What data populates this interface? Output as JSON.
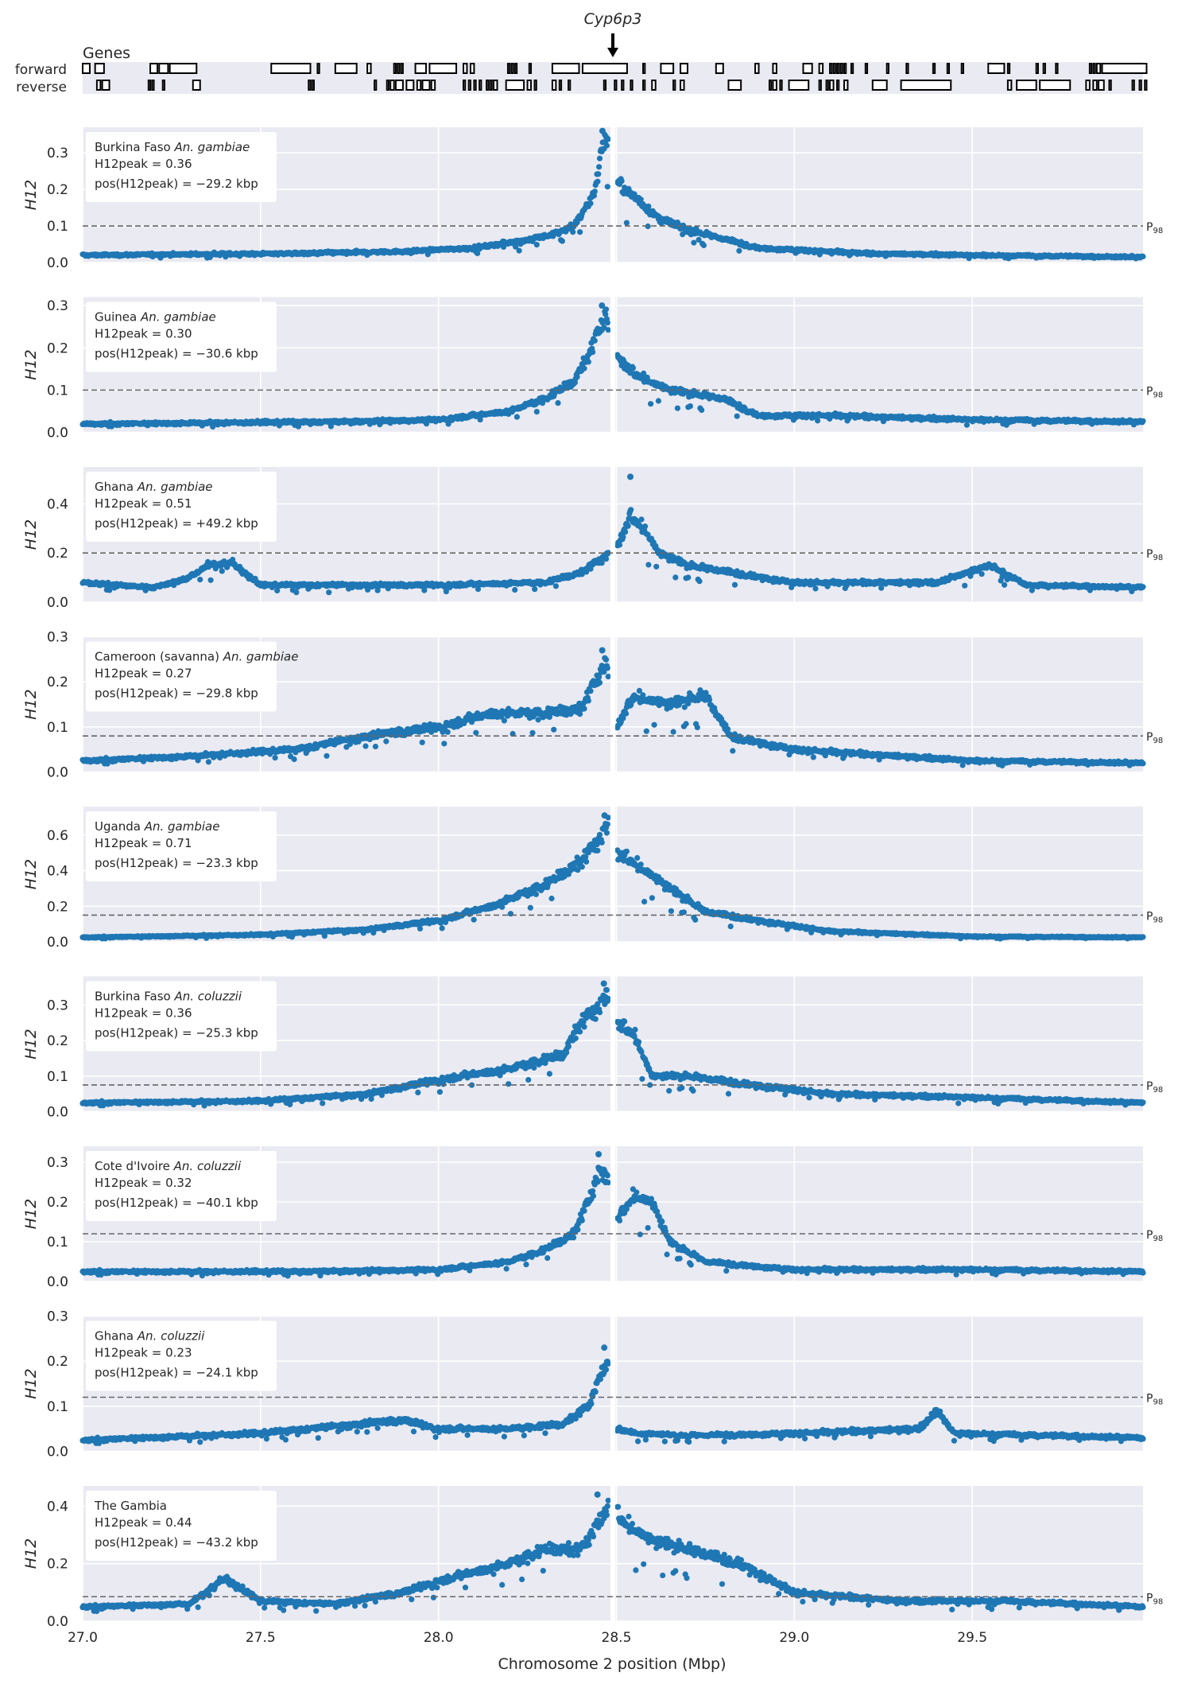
{
  "genes_track": {
    "title": "Genes",
    "strand_labels": [
      "forward",
      "reverse"
    ],
    "highlight_gene": "Cyp6p3",
    "highlight_position_mbp": 28.49,
    "forward_genes": [
      [
        27.0,
        27.02
      ],
      [
        27.035,
        27.06
      ],
      [
        27.19,
        27.21
      ],
      [
        27.215,
        27.24
      ],
      [
        27.245,
        27.32
      ],
      [
        27.53,
        27.64
      ],
      [
        27.66,
        27.665
      ],
      [
        27.71,
        27.77
      ],
      [
        27.8,
        27.81
      ],
      [
        27.875,
        27.88
      ],
      [
        27.885,
        27.89
      ],
      [
        27.895,
        27.9
      ],
      [
        27.935,
        27.965
      ],
      [
        27.975,
        28.05
      ],
      [
        28.07,
        28.08
      ],
      [
        28.09,
        28.1
      ],
      [
        28.195,
        28.2
      ],
      [
        28.205,
        28.21
      ],
      [
        28.215,
        28.22
      ],
      [
        28.255,
        28.26
      ],
      [
        28.32,
        28.395
      ],
      [
        28.405,
        28.53
      ],
      [
        28.575,
        28.58
      ],
      [
        28.625,
        28.66
      ],
      [
        28.68,
        28.7
      ],
      [
        28.78,
        28.8
      ],
      [
        28.89,
        28.9
      ],
      [
        28.94,
        28.95
      ],
      [
        29.025,
        29.05
      ],
      [
        29.07,
        29.08
      ],
      [
        29.1,
        29.105
      ],
      [
        29.11,
        29.115
      ],
      [
        29.12,
        29.125
      ],
      [
        29.13,
        29.135
      ],
      [
        29.14,
        29.145
      ],
      [
        29.16,
        29.165
      ],
      [
        29.2,
        29.205
      ],
      [
        29.26,
        29.265
      ],
      [
        29.315,
        29.32
      ],
      [
        29.39,
        29.395
      ],
      [
        29.43,
        29.435
      ],
      [
        29.47,
        29.475
      ],
      [
        29.545,
        29.59
      ],
      [
        29.6,
        29.605
      ],
      [
        29.68,
        29.685
      ],
      [
        29.7,
        29.705
      ],
      [
        29.735,
        29.74
      ],
      [
        29.83,
        29.835
      ],
      [
        29.84,
        29.845
      ],
      [
        29.85,
        29.86
      ],
      [
        29.865,
        29.99
      ]
    ],
    "reverse_genes": [
      [
        27.04,
        27.05
      ],
      [
        27.055,
        27.075
      ],
      [
        27.185,
        27.19
      ],
      [
        27.195,
        27.2
      ],
      [
        27.225,
        27.23
      ],
      [
        27.31,
        27.33
      ],
      [
        27.635,
        27.64
      ],
      [
        27.645,
        27.65
      ],
      [
        27.82,
        27.825
      ],
      [
        27.855,
        27.86
      ],
      [
        27.865,
        27.875
      ],
      [
        27.88,
        27.9
      ],
      [
        27.91,
        27.93
      ],
      [
        27.94,
        27.95
      ],
      [
        27.955,
        27.975
      ],
      [
        27.98,
        27.99
      ],
      [
        28.07,
        28.075
      ],
      [
        28.085,
        28.09
      ],
      [
        28.1,
        28.105
      ],
      [
        28.115,
        28.12
      ],
      [
        28.135,
        28.14
      ],
      [
        28.145,
        28.15
      ],
      [
        28.155,
        28.165
      ],
      [
        28.19,
        28.24
      ],
      [
        28.25,
        28.26
      ],
      [
        28.27,
        28.275
      ],
      [
        28.32,
        28.33
      ],
      [
        28.34,
        28.345
      ],
      [
        28.365,
        28.37
      ],
      [
        28.465,
        28.47
      ],
      [
        28.495,
        28.5
      ],
      [
        28.515,
        28.52
      ],
      [
        28.54,
        28.545
      ],
      [
        28.575,
        28.58
      ],
      [
        28.6,
        28.61
      ],
      [
        28.66,
        28.665
      ],
      [
        28.68,
        28.69
      ],
      [
        28.815,
        28.85
      ],
      [
        28.93,
        28.935
      ],
      [
        28.94,
        28.95
      ],
      [
        28.96,
        28.965
      ],
      [
        28.985,
        29.04
      ],
      [
        29.07,
        29.075
      ],
      [
        29.09,
        29.095
      ],
      [
        29.1,
        29.11
      ],
      [
        29.12,
        29.125
      ],
      [
        29.14,
        29.15
      ],
      [
        29.22,
        29.26
      ],
      [
        29.3,
        29.44
      ],
      [
        29.6,
        29.61
      ],
      [
        29.625,
        29.68
      ],
      [
        29.69,
        29.775
      ],
      [
        29.82,
        29.83
      ],
      [
        29.84,
        29.85
      ],
      [
        29.855,
        29.87
      ],
      [
        29.885,
        29.89
      ],
      [
        29.95,
        29.955
      ],
      [
        29.97,
        29.975
      ],
      [
        29.985,
        29.99
      ]
    ]
  },
  "x_axis": {
    "label": "Chromosome 2 position (Mbp)",
    "range": [
      27.0,
      29.98
    ],
    "ticks": [
      27.0,
      27.5,
      28.0,
      28.5,
      29.0,
      29.5
    ],
    "tick_labels": [
      "27.0",
      "27.5",
      "28.0",
      "28.5",
      "29.0",
      "29.5"
    ]
  },
  "threshold_label": "P98",
  "colors": {
    "points": "#1f77b4",
    "panel_bg": "#eaeaf2",
    "grid": "#ffffff",
    "threshold": "#666666",
    "gap": "#ffffff"
  },
  "chart_data": {
    "type": "scatter",
    "ylabel": "H12",
    "gap_position_mbp": 28.49,
    "grid": true,
    "legend_placement": "top-left",
    "panels": [
      {
        "population": "Burkina Faso",
        "species": "An. gambiae",
        "peak_label": "H12peak = 0.36",
        "pos_label": "pos(H12peak) = −29.2 kbp",
        "peak_h12": 0.36,
        "peak_offset_kbp": -29.2,
        "threshold": 0.1,
        "baseline": 0.02,
        "ylim": [
          0,
          0.37
        ],
        "yticks": [
          0.0,
          0.1,
          0.2,
          0.3
        ],
        "ytick_labels": [
          "0.0",
          "0.1",
          "0.2",
          "0.3"
        ],
        "profile_x": [
          27.0,
          27.6,
          27.9,
          28.1,
          28.3,
          28.38,
          28.42,
          28.44,
          28.46,
          28.48,
          28.5,
          28.55,
          28.62,
          28.7,
          28.9,
          29.2,
          29.5,
          29.98
        ],
        "profile_y": [
          0.02,
          0.025,
          0.03,
          0.04,
          0.07,
          0.1,
          0.16,
          0.2,
          0.32,
          0.35,
          0.22,
          0.18,
          0.12,
          0.09,
          0.04,
          0.025,
          0.02,
          0.015
        ],
        "bumps": []
      },
      {
        "population": "Guinea",
        "species": "An. gambiae",
        "peak_label": "H12peak = 0.30",
        "pos_label": "pos(H12peak) = −30.6 kbp",
        "peak_h12": 0.3,
        "peak_offset_kbp": -30.6,
        "threshold": 0.1,
        "baseline": 0.02,
        "ylim": [
          0,
          0.32
        ],
        "yticks": [
          0.0,
          0.1,
          0.2,
          0.3
        ],
        "ytick_labels": [
          "0.0",
          "0.1",
          "0.2",
          "0.3"
        ],
        "profile_x": [
          27.0,
          27.7,
          28.0,
          28.2,
          28.3,
          28.38,
          28.42,
          28.45,
          28.47,
          28.5,
          28.55,
          28.65,
          28.8,
          28.9,
          29.1,
          29.5,
          29.98
        ],
        "profile_y": [
          0.02,
          0.025,
          0.03,
          0.05,
          0.08,
          0.12,
          0.18,
          0.24,
          0.29,
          0.18,
          0.14,
          0.1,
          0.08,
          0.04,
          0.04,
          0.03,
          0.025
        ],
        "bumps": []
      },
      {
        "population": "Ghana",
        "species": "An. gambiae",
        "peak_label": "H12peak = 0.51",
        "pos_label": "pos(H12peak) = +49.2 kbp",
        "peak_h12": 0.51,
        "peak_offset_kbp": 49.2,
        "threshold": 0.2,
        "baseline": 0.07,
        "ylim": [
          0,
          0.55
        ],
        "yticks": [
          0.0,
          0.2,
          0.4
        ],
        "ytick_labels": [
          "0.0",
          "0.2",
          "0.4"
        ],
        "profile_x": [
          27.0,
          27.2,
          27.3,
          27.35,
          27.42,
          27.5,
          28.0,
          28.3,
          28.4,
          28.48,
          28.5,
          28.54,
          28.58,
          28.62,
          28.7,
          29.0,
          29.4,
          29.55,
          29.65,
          29.98
        ],
        "profile_y": [
          0.08,
          0.06,
          0.1,
          0.15,
          0.16,
          0.07,
          0.07,
          0.08,
          0.12,
          0.2,
          0.22,
          0.35,
          0.3,
          0.2,
          0.15,
          0.08,
          0.08,
          0.15,
          0.07,
          0.06
        ],
        "bumps": []
      },
      {
        "population": "Cameroon (savanna)",
        "species": "An. gambiae",
        "peak_label": "H12peak = 0.27",
        "pos_label": "pos(H12peak) = −29.8 kbp",
        "peak_h12": 0.27,
        "peak_offset_kbp": -29.8,
        "threshold": 0.08,
        "baseline": 0.02,
        "ylim": [
          0,
          0.3
        ],
        "yticks": [
          0.0,
          0.1,
          0.2,
          0.3
        ],
        "ytick_labels": [
          "0.0",
          "0.1",
          "0.2",
          "0.3"
        ],
        "profile_x": [
          27.0,
          27.3,
          27.6,
          27.8,
          28.0,
          28.15,
          28.3,
          28.4,
          28.44,
          28.47,
          28.5,
          28.55,
          28.65,
          28.75,
          28.82,
          29.0,
          29.2,
          29.5,
          29.98
        ],
        "profile_y": [
          0.025,
          0.035,
          0.05,
          0.08,
          0.1,
          0.13,
          0.13,
          0.14,
          0.2,
          0.25,
          0.1,
          0.17,
          0.15,
          0.17,
          0.08,
          0.05,
          0.04,
          0.025,
          0.02
        ],
        "bumps": []
      },
      {
        "population": "Uganda",
        "species": "An. gambiae",
        "peak_label": "H12peak = 0.71",
        "pos_label": "pos(H12peak) = −23.3 kbp",
        "peak_h12": 0.71,
        "peak_offset_kbp": -23.3,
        "threshold": 0.15,
        "baseline": 0.03,
        "ylim": [
          0,
          0.76
        ],
        "yticks": [
          0.0,
          0.2,
          0.4,
          0.6
        ],
        "ytick_labels": [
          "0.0",
          "0.2",
          "0.4",
          "0.6"
        ],
        "profile_x": [
          27.0,
          27.5,
          27.8,
          28.0,
          28.15,
          28.3,
          28.4,
          28.45,
          28.48,
          28.5,
          28.55,
          28.65,
          28.75,
          28.9,
          29.1,
          29.5,
          29.98
        ],
        "profile_y": [
          0.025,
          0.04,
          0.07,
          0.12,
          0.2,
          0.32,
          0.45,
          0.58,
          0.68,
          0.5,
          0.45,
          0.3,
          0.17,
          0.12,
          0.06,
          0.03,
          0.025
        ],
        "bumps": []
      },
      {
        "population": "Burkina Faso",
        "species": "An. coluzzii",
        "peak_label": "H12peak = 0.36",
        "pos_label": "pos(H12peak) = −25.3 kbp",
        "peak_h12": 0.36,
        "peak_offset_kbp": -25.3,
        "threshold": 0.075,
        "baseline": 0.02,
        "ylim": [
          0,
          0.38
        ],
        "yticks": [
          0.0,
          0.1,
          0.2,
          0.3
        ],
        "ytick_labels": [
          "0.0",
          "0.1",
          "0.2",
          "0.3"
        ],
        "profile_x": [
          27.0,
          27.5,
          27.8,
          28.0,
          28.2,
          28.35,
          28.4,
          28.45,
          28.48,
          28.5,
          28.55,
          28.6,
          28.7,
          28.85,
          29.1,
          29.5,
          29.98
        ],
        "profile_y": [
          0.025,
          0.03,
          0.05,
          0.09,
          0.12,
          0.16,
          0.25,
          0.3,
          0.34,
          0.25,
          0.22,
          0.1,
          0.1,
          0.08,
          0.05,
          0.04,
          0.025
        ],
        "bumps": []
      },
      {
        "population": "Cote d'Ivoire",
        "species": "An. coluzzii",
        "peak_label": "H12peak = 0.32",
        "pos_label": "pos(H12peak) = −40.1 kbp",
        "peak_h12": 0.32,
        "peak_offset_kbp": -40.1,
        "threshold": 0.12,
        "baseline": 0.025,
        "ylim": [
          0,
          0.34
        ],
        "yticks": [
          0.0,
          0.1,
          0.2,
          0.3
        ],
        "ytick_labels": [
          "0.0",
          "0.1",
          "0.2",
          "0.3"
        ],
        "profile_x": [
          27.0,
          27.6,
          28.0,
          28.2,
          28.3,
          28.38,
          28.42,
          28.45,
          28.48,
          28.5,
          28.55,
          28.6,
          28.65,
          28.75,
          29.0,
          29.5,
          29.98
        ],
        "profile_y": [
          0.025,
          0.025,
          0.03,
          0.05,
          0.08,
          0.12,
          0.2,
          0.28,
          0.26,
          0.15,
          0.22,
          0.2,
          0.1,
          0.05,
          0.03,
          0.03,
          0.025
        ],
        "bumps": []
      },
      {
        "population": "Ghana",
        "species": "An. coluzzii",
        "peak_label": "H12peak = 0.23",
        "pos_label": "pos(H12peak) = −24.1 kbp",
        "peak_h12": 0.23,
        "peak_offset_kbp": -24.1,
        "threshold": 0.12,
        "baseline": 0.03,
        "ylim": [
          0,
          0.3
        ],
        "yticks": [
          0.0,
          0.1,
          0.2,
          0.3
        ],
        "ytick_labels": [
          "0.0",
          "0.1",
          "0.2",
          "0.3"
        ],
        "profile_x": [
          27.0,
          27.5,
          27.9,
          28.0,
          28.2,
          28.35,
          28.42,
          28.46,
          28.48,
          28.5,
          28.56,
          28.7,
          29.0,
          29.35,
          29.4,
          29.45,
          29.98
        ],
        "profile_y": [
          0.025,
          0.04,
          0.07,
          0.05,
          0.05,
          0.06,
          0.1,
          0.18,
          0.2,
          0.05,
          0.04,
          0.035,
          0.04,
          0.05,
          0.09,
          0.04,
          0.03
        ],
        "bumps": []
      },
      {
        "population": "The Gambia",
        "species": "",
        "peak_label": "H12peak = 0.44",
        "pos_label": "pos(H12peak) = −43.2 kbp",
        "peak_h12": 0.44,
        "peak_offset_kbp": -43.2,
        "threshold": 0.085,
        "baseline": 0.05,
        "ylim": [
          0,
          0.47
        ],
        "yticks": [
          0.0,
          0.2,
          0.4
        ],
        "ytick_labels": [
          "0.0",
          "0.2",
          "0.4"
        ],
        "profile_x": [
          27.0,
          27.3,
          27.4,
          27.5,
          27.7,
          27.9,
          28.0,
          28.2,
          28.3,
          28.4,
          28.45,
          28.48,
          28.52,
          28.6,
          28.7,
          28.85,
          29.0,
          29.3,
          29.6,
          29.98
        ],
        "profile_y": [
          0.05,
          0.06,
          0.15,
          0.07,
          0.06,
          0.1,
          0.14,
          0.2,
          0.25,
          0.25,
          0.35,
          0.4,
          0.35,
          0.28,
          0.25,
          0.2,
          0.1,
          0.07,
          0.07,
          0.05
        ],
        "bumps": []
      }
    ]
  }
}
